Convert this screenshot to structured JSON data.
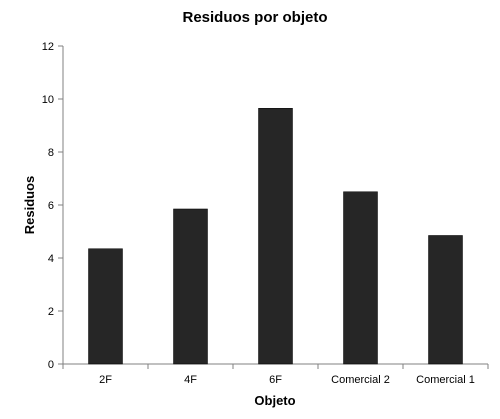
{
  "chart_data": {
    "type": "bar",
    "title": "Residuos por objeto",
    "xlabel": "Objeto",
    "ylabel": "Residuos",
    "categories": [
      "2F",
      "4F",
      "6F",
      "Comercial 2",
      "Comercial 1"
    ],
    "values": [
      4.35,
      5.85,
      9.65,
      6.5,
      4.85
    ],
    "ylim": [
      0,
      12
    ],
    "yticks": [
      0,
      2,
      4,
      6,
      8,
      10,
      12
    ],
    "ytick_labels": [
      "0",
      "2",
      "4",
      "6",
      "8",
      "10",
      "12"
    ],
    "grid": false,
    "legend": "none",
    "bar_color": "#262626",
    "axis_color": "#808080"
  }
}
